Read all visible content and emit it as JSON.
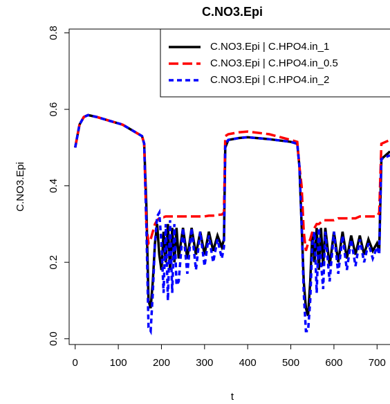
{
  "chart_data": {
    "type": "line",
    "title": "C.NO3.Epi",
    "x_label": "t",
    "y_label": "C.NO3.Epi",
    "x": [
      0,
      10,
      20,
      30,
      50,
      80,
      110,
      140,
      155,
      160,
      165,
      170,
      175,
      180,
      185,
      190,
      195,
      200,
      205,
      210,
      215,
      220,
      225,
      230,
      235,
      240,
      250,
      260,
      270,
      280,
      290,
      300,
      310,
      320,
      330,
      340,
      345,
      348,
      355,
      380,
      400,
      450,
      500,
      515,
      520,
      525,
      530,
      535,
      540,
      545,
      550,
      555,
      560,
      565,
      570,
      575,
      580,
      590,
      600,
      610,
      620,
      630,
      640,
      650,
      660,
      670,
      680,
      690,
      700,
      705,
      710,
      720,
      730
    ],
    "series": [
      {
        "name": "C.NO3.Epi | C.HPO4.in_1",
        "color": "#000000",
        "dash": "solid",
        "values": [
          0.5,
          0.56,
          0.58,
          0.585,
          0.58,
          0.57,
          0.56,
          0.54,
          0.53,
          0.51,
          0.35,
          0.1,
          0.08,
          0.15,
          0.25,
          0.3,
          0.22,
          0.18,
          0.28,
          0.2,
          0.3,
          0.18,
          0.29,
          0.2,
          0.29,
          0.21,
          0.29,
          0.21,
          0.29,
          0.22,
          0.28,
          0.22,
          0.28,
          0.23,
          0.27,
          0.24,
          0.26,
          0.5,
          0.52,
          0.525,
          0.527,
          0.522,
          0.515,
          0.51,
          0.45,
          0.3,
          0.15,
          0.08,
          0.06,
          0.15,
          0.28,
          0.2,
          0.29,
          0.18,
          0.29,
          0.19,
          0.29,
          0.19,
          0.28,
          0.2,
          0.28,
          0.21,
          0.27,
          0.22,
          0.27,
          0.22,
          0.26,
          0.23,
          0.25,
          0.23,
          0.47,
          0.48,
          0.49
        ]
      },
      {
        "name": "C.NO3.Epi | C.HPO4.in_0.5",
        "color": "#ff0000",
        "dash": "long",
        "values": [
          0.5,
          0.56,
          0.58,
          0.585,
          0.58,
          0.57,
          0.56,
          0.54,
          0.53,
          0.51,
          0.3,
          0.25,
          0.26,
          0.28,
          0.3,
          0.31,
          0.315,
          0.32,
          0.318,
          0.32,
          0.32,
          0.32,
          0.32,
          0.32,
          0.32,
          0.32,
          0.32,
          0.32,
          0.32,
          0.32,
          0.32,
          0.32,
          0.322,
          0.322,
          0.324,
          0.325,
          0.33,
          0.53,
          0.535,
          0.54,
          0.542,
          0.535,
          0.52,
          0.515,
          0.45,
          0.4,
          0.28,
          0.23,
          0.25,
          0.26,
          0.28,
          0.29,
          0.3,
          0.3,
          0.305,
          0.31,
          0.31,
          0.31,
          0.31,
          0.315,
          0.315,
          0.315,
          0.315,
          0.315,
          0.32,
          0.32,
          0.32,
          0.32,
          0.32,
          0.33,
          0.51,
          0.515,
          0.52
        ]
      },
      {
        "name": "C.NO3.Epi | C.HPO4.in_2",
        "color": "#0000ff",
        "dash": "short",
        "values": [
          0.5,
          0.56,
          0.58,
          0.585,
          0.58,
          0.57,
          0.56,
          0.54,
          0.53,
          0.51,
          0.3,
          0.03,
          0.02,
          0.12,
          0.25,
          0.32,
          0.33,
          0.25,
          0.12,
          0.3,
          0.1,
          0.31,
          0.12,
          0.3,
          0.14,
          0.15,
          0.29,
          0.17,
          0.29,
          0.18,
          0.28,
          0.19,
          0.27,
          0.2,
          0.26,
          0.21,
          0.24,
          0.51,
          0.52,
          0.525,
          0.527,
          0.522,
          0.515,
          0.51,
          0.45,
          0.3,
          0.12,
          0.02,
          0.02,
          0.1,
          0.25,
          0.28,
          0.12,
          0.29,
          0.2,
          0.13,
          0.28,
          0.15,
          0.28,
          0.17,
          0.27,
          0.18,
          0.26,
          0.19,
          0.26,
          0.2,
          0.25,
          0.21,
          0.24,
          0.22,
          0.47,
          0.475,
          0.48
        ]
      }
    ],
    "xlim": [
      -14,
      730
    ],
    "ylim": [
      -0.015,
      0.81
    ],
    "xticks": [
      0,
      100,
      200,
      300,
      400,
      500,
      600,
      700
    ],
    "yticks": [
      {
        "value": 0,
        "label": "0.0"
      },
      0.2,
      0.4,
      0.6,
      0.8
    ],
    "legend": "top-right"
  }
}
